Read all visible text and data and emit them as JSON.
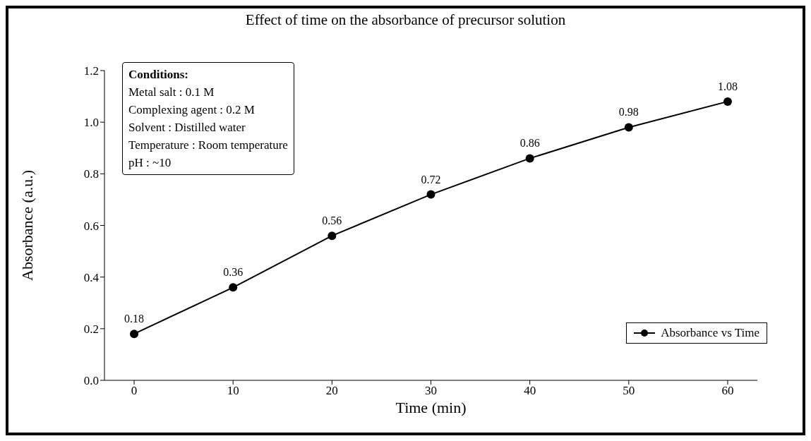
{
  "chart_data": {
    "type": "line",
    "title": "Effect of time on the absorbance of precursor solution",
    "xlabel": "Time (min)",
    "ylabel": "Absorbance (a.u.)",
    "x": [
      0,
      10,
      20,
      30,
      40,
      50,
      60
    ],
    "series": [
      {
        "name": "Absorbance vs Time",
        "color": "#000000",
        "values": [
          0.18,
          0.36,
          0.56,
          0.72,
          0.86,
          0.98,
          1.08
        ]
      }
    ],
    "xlim": [
      -3,
      63
    ],
    "xticks": [
      0,
      10,
      20,
      30,
      40,
      50,
      60
    ],
    "ylim": [
      0,
      1.2
    ],
    "yticks": [
      {
        "value": 0,
        "label": "0.0"
      },
      0.2,
      0.4,
      0.6,
      0.8,
      {
        "value": 1,
        "label": "1.0"
      },
      1.2
    ],
    "data_labels": true,
    "marker": "circle",
    "line_style": "solid",
    "legend": "right",
    "annotations": [
      "Conditions:",
      "Metal salt : 0.1 M",
      "Complexing agent : 0.2 M",
      "Solvent : Distilled water",
      "Temperature : Room temperature",
      "pH : ~10"
    ]
  }
}
